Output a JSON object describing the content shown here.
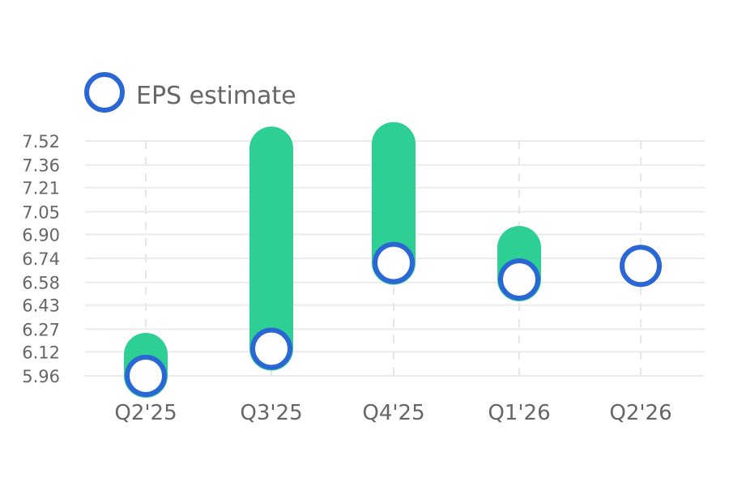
{
  "chart_data": {
    "type": "bar",
    "title": "",
    "xlabel": "",
    "ylabel": "",
    "categories": [
      "Q2'25",
      "Q3'25",
      "Q4'25",
      "Q1'26",
      "Q2'26"
    ],
    "y_ticks": [
      "5.96",
      "6.12",
      "6.27",
      "6.43",
      "6.58",
      "6.74",
      "6.90",
      "7.05",
      "7.21",
      "7.36",
      "7.52"
    ],
    "ylim": [
      5.96,
      7.52
    ],
    "grid": true,
    "legend_position": "top-left",
    "legend": {
      "label": "EPS estimate"
    },
    "series": [
      {
        "kind": "range-bar",
        "low": [
          5.96,
          6.14,
          6.71,
          6.6,
          null
        ],
        "high": [
          6.1,
          7.47,
          7.5,
          6.81,
          null
        ],
        "color": "#2ecf95"
      },
      {
        "name": "EPS estimate",
        "kind": "marker",
        "values": [
          5.96,
          6.14,
          6.71,
          6.6,
          6.69
        ],
        "color": "#2a66d4"
      }
    ]
  }
}
